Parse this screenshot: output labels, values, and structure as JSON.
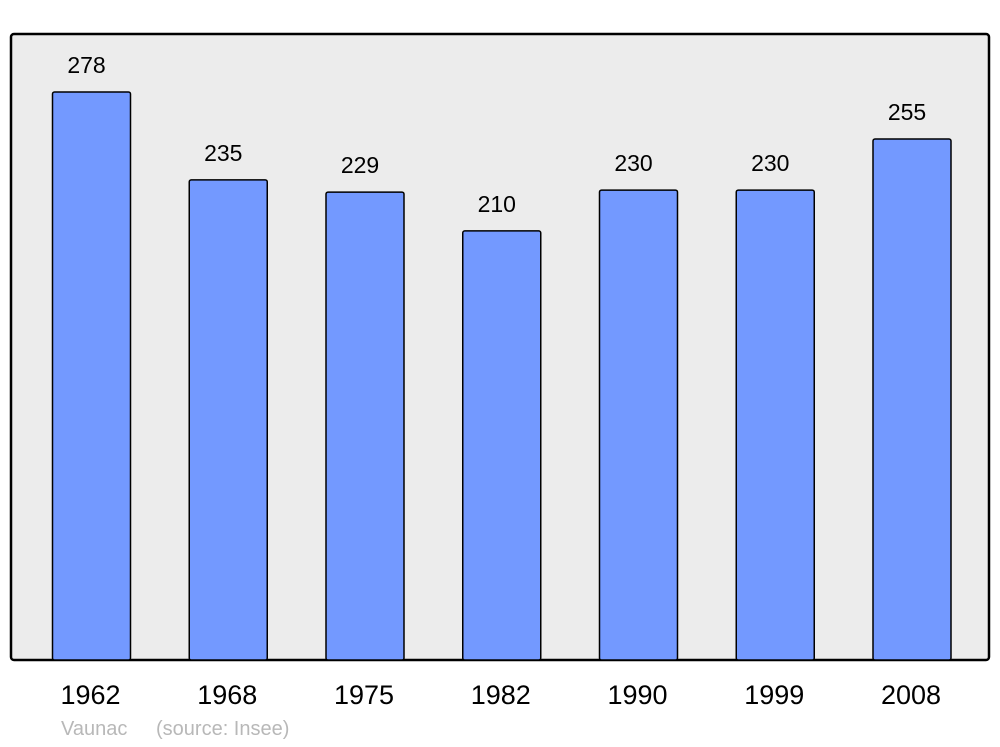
{
  "chart_data": {
    "type": "bar",
    "categories": [
      "1962",
      "1968",
      "1975",
      "1982",
      "1990",
      "1999",
      "2008"
    ],
    "values": [
      278,
      235,
      229,
      210,
      230,
      230,
      255
    ],
    "title": "",
    "xlabel": "",
    "ylabel": "",
    "ylim": [
      0,
      306
    ],
    "grid": false,
    "data_labels": true,
    "colors": {
      "bar": "#7399ff",
      "background": "#ececec",
      "frame": "#000000"
    }
  },
  "footer": {
    "place": "Vaunac",
    "source": "(source: Insee)"
  }
}
